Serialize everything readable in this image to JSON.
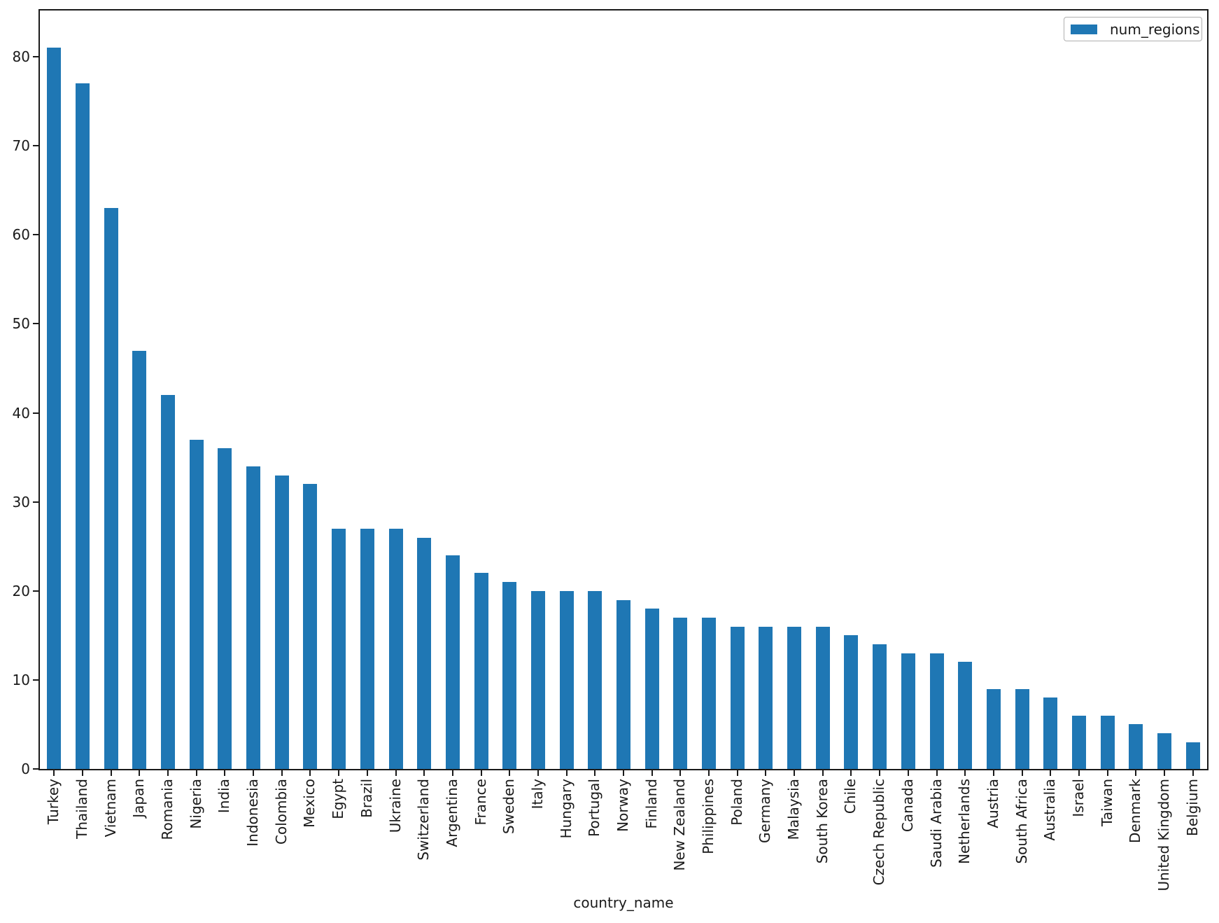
{
  "chart_data": {
    "type": "bar",
    "title": "",
    "xlabel": "country_name",
    "ylabel": "",
    "legend": {
      "label": "num_regions",
      "position": "upper right"
    },
    "grid": false,
    "yticks": [
      0,
      10,
      20,
      30,
      40,
      50,
      60,
      70,
      80
    ],
    "ylim": [
      0,
      85.2
    ],
    "categories": [
      "Turkey",
      "Thailand",
      "Vietnam",
      "Japan",
      "Romania",
      "Nigeria",
      "India",
      "Indonesia",
      "Colombia",
      "Mexico",
      "Egypt",
      "Brazil",
      "Ukraine",
      "Switzerland",
      "Argentina",
      "France",
      "Sweden",
      "Italy",
      "Hungary",
      "Portugal",
      "Norway",
      "Finland",
      "New Zealand",
      "Philippines",
      "Poland",
      "Germany",
      "Malaysia",
      "South Korea",
      "Chile",
      "Czech Republic",
      "Canada",
      "Saudi Arabia",
      "Netherlands",
      "Austria",
      "South Africa",
      "Australia",
      "Israel",
      "Taiwan",
      "Denmark",
      "United Kingdom",
      "Belgium"
    ],
    "values": [
      81,
      77,
      63,
      47,
      42,
      37,
      36,
      34,
      33,
      32,
      27,
      27,
      27,
      26,
      24,
      22,
      21,
      20,
      20,
      20,
      19,
      18,
      17,
      17,
      16,
      16,
      16,
      16,
      15,
      14,
      13,
      13,
      12,
      9,
      9,
      8,
      6,
      6,
      5,
      4,
      3
    ]
  },
  "colors": {
    "bar": "#1f77b4",
    "text": "#1a1a1a",
    "spine": "#1a1a1a",
    "legend_border": "#b0b0b0",
    "background": "#ffffff"
  }
}
